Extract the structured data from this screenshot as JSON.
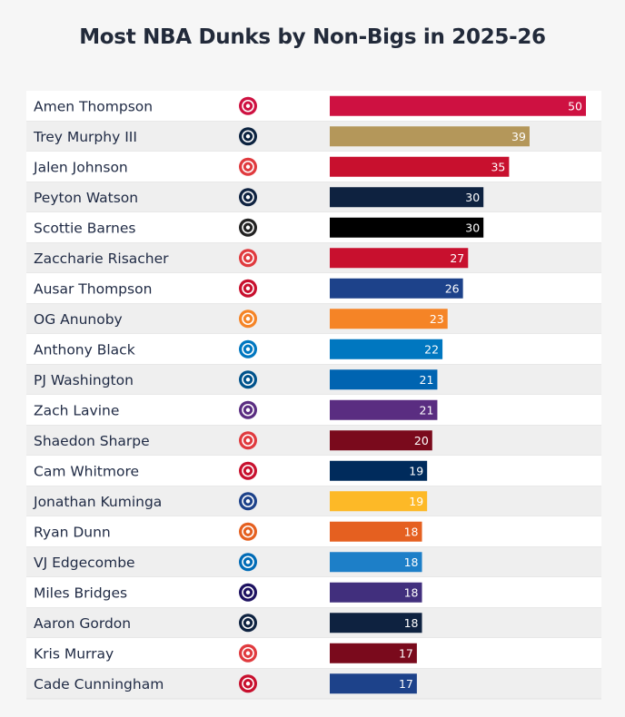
{
  "chart_data": {
    "type": "bar",
    "orientation": "horizontal",
    "title": "Most NBA Dunks by Non-Bigs in 2025-26",
    "xlim": [
      0,
      50
    ],
    "grid": false,
    "categories": [
      "Amen Thompson",
      "Trey Murphy III",
      "Jalen Johnson",
      "Peyton Watson",
      "Scottie Barnes",
      "Zaccharie Risacher",
      "Ausar Thompson",
      "OG Anunoby",
      "Anthony Black",
      "PJ Washington",
      "Zach Lavine",
      "Shaedon Sharpe",
      "Cam Whitmore",
      "Jonathan Kuminga",
      "Ryan Dunn",
      "VJ Edgecombe",
      "Miles Bridges",
      "Aaron Gordon",
      "Kris Murray",
      "Cade Cunningham"
    ],
    "values": [
      50,
      39,
      35,
      30,
      30,
      27,
      26,
      23,
      22,
      21,
      21,
      20,
      19,
      19,
      18,
      18,
      18,
      18,
      17,
      17
    ],
    "bar_colors": [
      "#ce1141",
      "#b4975a",
      "#c8102e",
      "#0e2240",
      "#000000",
      "#c8102e",
      "#1d428a",
      "#f58426",
      "#0077c0",
      "#0064b1",
      "#5a2d81",
      "#7a0a1c",
      "#002b5c",
      "#fdb927",
      "#e56020",
      "#1d7fc8",
      "#412f7d",
      "#0e2240",
      "#7a0a1c",
      "#1d428a"
    ],
    "team_logo_icons": [
      "rockets-logo-icon",
      "pelicans-logo-icon",
      "hawks-logo-icon",
      "nuggets-logo-icon",
      "raptors-logo-icon",
      "hawks-logo-icon",
      "pistons-logo-icon",
      "knicks-logo-icon",
      "magic-logo-icon",
      "mavericks-logo-icon",
      "kings-logo-icon",
      "trail-blazers-logo-icon",
      "wizards-logo-icon",
      "warriors-logo-icon",
      "suns-logo-icon",
      "76ers-logo-icon",
      "hornets-logo-icon",
      "nuggets-logo-icon",
      "trail-blazers-logo-icon",
      "pistons-logo-icon"
    ],
    "logo_colors": [
      "#ce1141",
      "#0c2340",
      "#e03a3e",
      "#0e2240",
      "#222222",
      "#e03a3e",
      "#c8102e",
      "#f58426",
      "#0077c0",
      "#00538c",
      "#5a2d81",
      "#e03a3e",
      "#c8102e",
      "#1d428a",
      "#e56020",
      "#006bb6",
      "#1d1160",
      "#0e2240",
      "#e03a3e",
      "#c8102e"
    ]
  }
}
